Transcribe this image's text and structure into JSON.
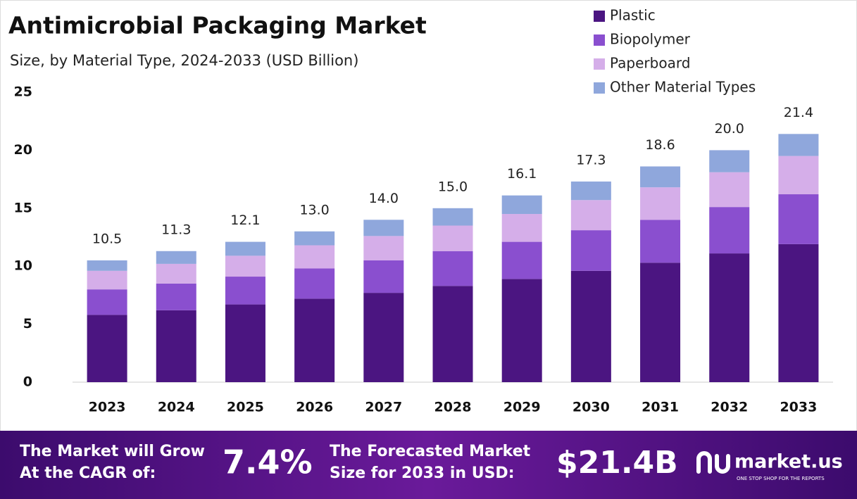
{
  "chart_data": {
    "type": "stacked_bar",
    "title": "Antimicrobial Packaging Market",
    "subtitle": "Size, by Material Type, 2024-2033 (USD Billion)",
    "categories": [
      "2023",
      "2024",
      "2025",
      "2026",
      "2027",
      "2028",
      "2029",
      "2030",
      "2031",
      "2032",
      "2033"
    ],
    "series": [
      {
        "name": "Plastic",
        "color": "#4b1581",
        "values": [
          5.8,
          6.2,
          6.7,
          7.2,
          7.7,
          8.3,
          8.9,
          9.6,
          10.3,
          11.1,
          11.9
        ]
      },
      {
        "name": "Biopolymer",
        "color": "#8a4fcf",
        "values": [
          2.2,
          2.3,
          2.4,
          2.6,
          2.8,
          3.0,
          3.2,
          3.5,
          3.7,
          4.0,
          4.3
        ]
      },
      {
        "name": "Paperboard",
        "color": "#d5aee9",
        "values": [
          1.6,
          1.7,
          1.8,
          2.0,
          2.1,
          2.2,
          2.4,
          2.6,
          2.8,
          3.0,
          3.3
        ]
      },
      {
        "name": "Other Material Types",
        "color": "#8fa7dc",
        "values": [
          0.9,
          1.1,
          1.2,
          1.2,
          1.4,
          1.5,
          1.6,
          1.6,
          1.8,
          1.9,
          1.9
        ]
      }
    ],
    "totals": [
      10.5,
      11.3,
      12.1,
      13.0,
      14.0,
      15.0,
      16.1,
      17.3,
      18.6,
      20.0,
      21.4
    ],
    "total_labels": [
      "10.5",
      "11.3",
      "12.1",
      "13.0",
      "14.0",
      "15.0",
      "16.1",
      "17.3",
      "18.6",
      "20.0",
      "21.4"
    ],
    "ylim": [
      0,
      25
    ],
    "yticks": [
      0,
      5,
      10,
      15,
      20,
      25
    ],
    "grid": false,
    "legend": "top-right"
  },
  "footer": {
    "cagr_text": [
      "The Market will Grow",
      "At the CAGR of:"
    ],
    "cagr_value": "7.4%",
    "forecast_text": [
      "The Forecasted Market",
      "Size for 2033 in USD:"
    ],
    "forecast_value": "$21.4B",
    "brand": "market.us",
    "tagline": "ONE STOP SHOP FOR THE REPORTS"
  }
}
